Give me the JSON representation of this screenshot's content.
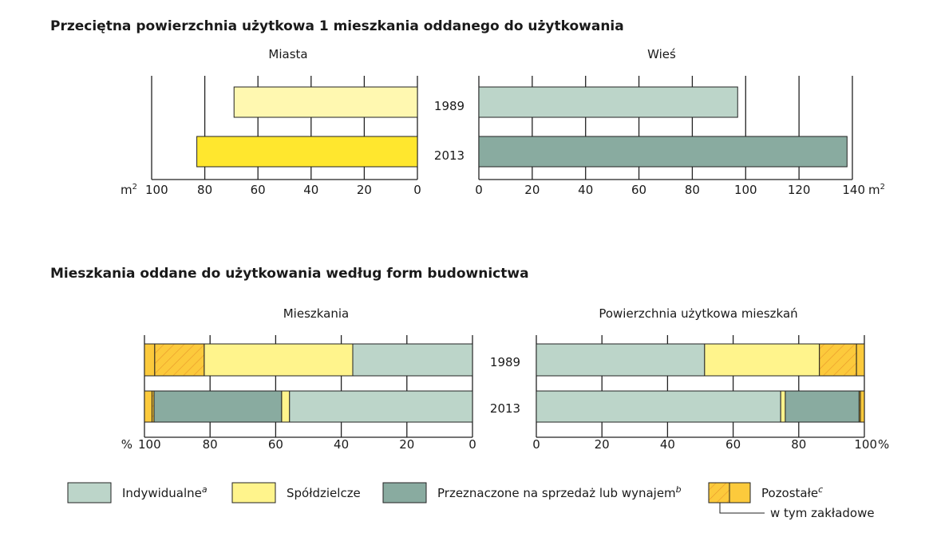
{
  "colors": {
    "indywidualne": "#bcd5c9",
    "spoldzielcze": "#fff48c",
    "przeznaczone": "#89aba0",
    "pozostale": "#fcca3c",
    "hatch": "#e8962a",
    "miasta_1989": "#fff8b0",
    "miasta_2013": "#ffe72e",
    "wies_1989": "#bcd5c9",
    "wies_2013": "#89aba0"
  },
  "chart_data": [
    {
      "type": "bar",
      "orientation": "horizontal",
      "title": "Przeciętna powierzchnia użytkowa 1 mieszkania oddanego do użytkowania",
      "subtitle": "Miasta",
      "unit": "m2",
      "categories": [
        "1989",
        "2013"
      ],
      "values": [
        69,
        83
      ],
      "xlim": [
        100,
        0
      ],
      "ticks": [
        "100",
        "80",
        "60",
        "40",
        "20",
        "0"
      ],
      "grid": true
    },
    {
      "type": "bar",
      "orientation": "horizontal",
      "subtitle": "Wieś",
      "unit": "m2",
      "categories": [
        "1989",
        "2013"
      ],
      "values": [
        97,
        138
      ],
      "xlim": [
        0,
        140
      ],
      "ticks": [
        "0",
        "20",
        "40",
        "60",
        "80",
        "100",
        "120",
        "140"
      ],
      "grid": true
    },
    {
      "type": "bar",
      "stacked": true,
      "orientation": "horizontal",
      "title": "Mieszkania oddane do użytkowania według form budownictwa",
      "subtitle": "Mieszkania",
      "unit": "%",
      "xlim": [
        100,
        0
      ],
      "ticks": [
        "100",
        "80",
        "60",
        "40",
        "20",
        "0"
      ],
      "categories": [
        "1989",
        "2013"
      ],
      "series": [
        {
          "name": "Indywidualne",
          "values": [
            36.5,
            55.8
          ]
        },
        {
          "name": "Spółdzielcze",
          "values": [
            45.3,
            2.4
          ]
        },
        {
          "name": "Przeznaczone na sprzedaż lub wynajem",
          "values": [
            0,
            38.9
          ]
        },
        {
          "name": "w tym zakładowe",
          "values": [
            15.1,
            0.6
          ]
        },
        {
          "name": "Pozostałe",
          "values": [
            3.1,
            2.3
          ]
        }
      ],
      "grid": true
    },
    {
      "type": "bar",
      "stacked": true,
      "orientation": "horizontal",
      "subtitle": "Powierzchnia użytkowa mieszkań",
      "unit": "%",
      "xlim": [
        0,
        100
      ],
      "ticks": [
        "0",
        "20",
        "40",
        "60",
        "80",
        "100"
      ],
      "categories": [
        "1989",
        "2013"
      ],
      "series": [
        {
          "name": "Indywidualne",
          "values": [
            51.3,
            74.5
          ]
        },
        {
          "name": "Spółdzielcze",
          "values": [
            35.0,
            1.4
          ]
        },
        {
          "name": "Przeznaczone na sprzedaż lub wynajem",
          "values": [
            0,
            22.5
          ]
        },
        {
          "name": "w tym zakładowe",
          "values": [
            11.3,
            0.4
          ]
        },
        {
          "name": "Pozostałe",
          "values": [
            2.4,
            1.2
          ]
        }
      ],
      "grid": true
    }
  ],
  "text": {
    "title1": "Przeciętna powierzchnia użytkowa 1 mieszkania oddanego do użytkowania",
    "title2": "Mieszkania oddane do użytkowania według form budownictwa",
    "miasta": "Miasta",
    "wies": "Wieś",
    "mieszkania": "Mieszkania",
    "powierzchnia": "Powierzchnia użytkowa mieszkań",
    "y1989": "1989",
    "y2013": "2013",
    "m2": "m",
    "sup2": "2",
    "pct_left": "%",
    "pct_right": "%"
  },
  "legend": [
    {
      "label": "Indywidualne",
      "sup": "a"
    },
    {
      "label": "Spółdzielcze",
      "sup": ""
    },
    {
      "label": "Przeznaczone na sprzedaż lub wynajem",
      "sup": "b"
    },
    {
      "label": "Pozostałe",
      "sup": "c"
    }
  ],
  "legend_sub": "w tym zakładowe"
}
